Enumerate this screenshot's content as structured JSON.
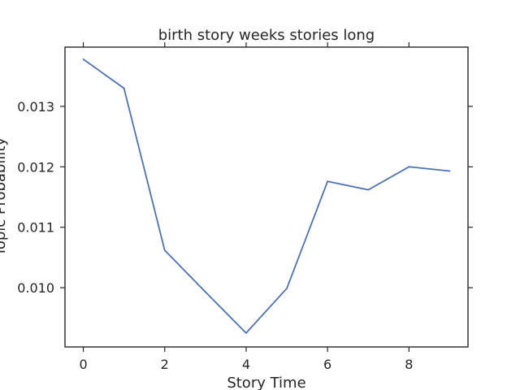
{
  "chart_data": {
    "type": "line",
    "title": "birth story weeks stories long",
    "xlabel": "Story Time",
    "ylabel": "Topic Probability",
    "xlim": [
      -0.45,
      9.45
    ],
    "ylim": [
      0.00902,
      0.01398
    ],
    "xticks": [
      0,
      2,
      4,
      6,
      8
    ],
    "xtick_labels": [
      "0",
      "2",
      "4",
      "6",
      "8"
    ],
    "yticks": [
      0.01,
      0.011,
      0.012,
      0.013
    ],
    "ytick_labels": [
      "0.010",
      "0.011",
      "0.012",
      "0.013"
    ],
    "grid": false,
    "series": [
      {
        "color": "#4c72b0",
        "x": [
          0,
          1,
          2,
          3,
          4,
          5,
          6,
          7,
          8,
          9
        ],
        "values": [
          0.01378,
          0.0133,
          0.01062,
          0.00993,
          0.00925,
          0.00999,
          0.01176,
          0.01162,
          0.012,
          0.01193
        ]
      }
    ]
  }
}
